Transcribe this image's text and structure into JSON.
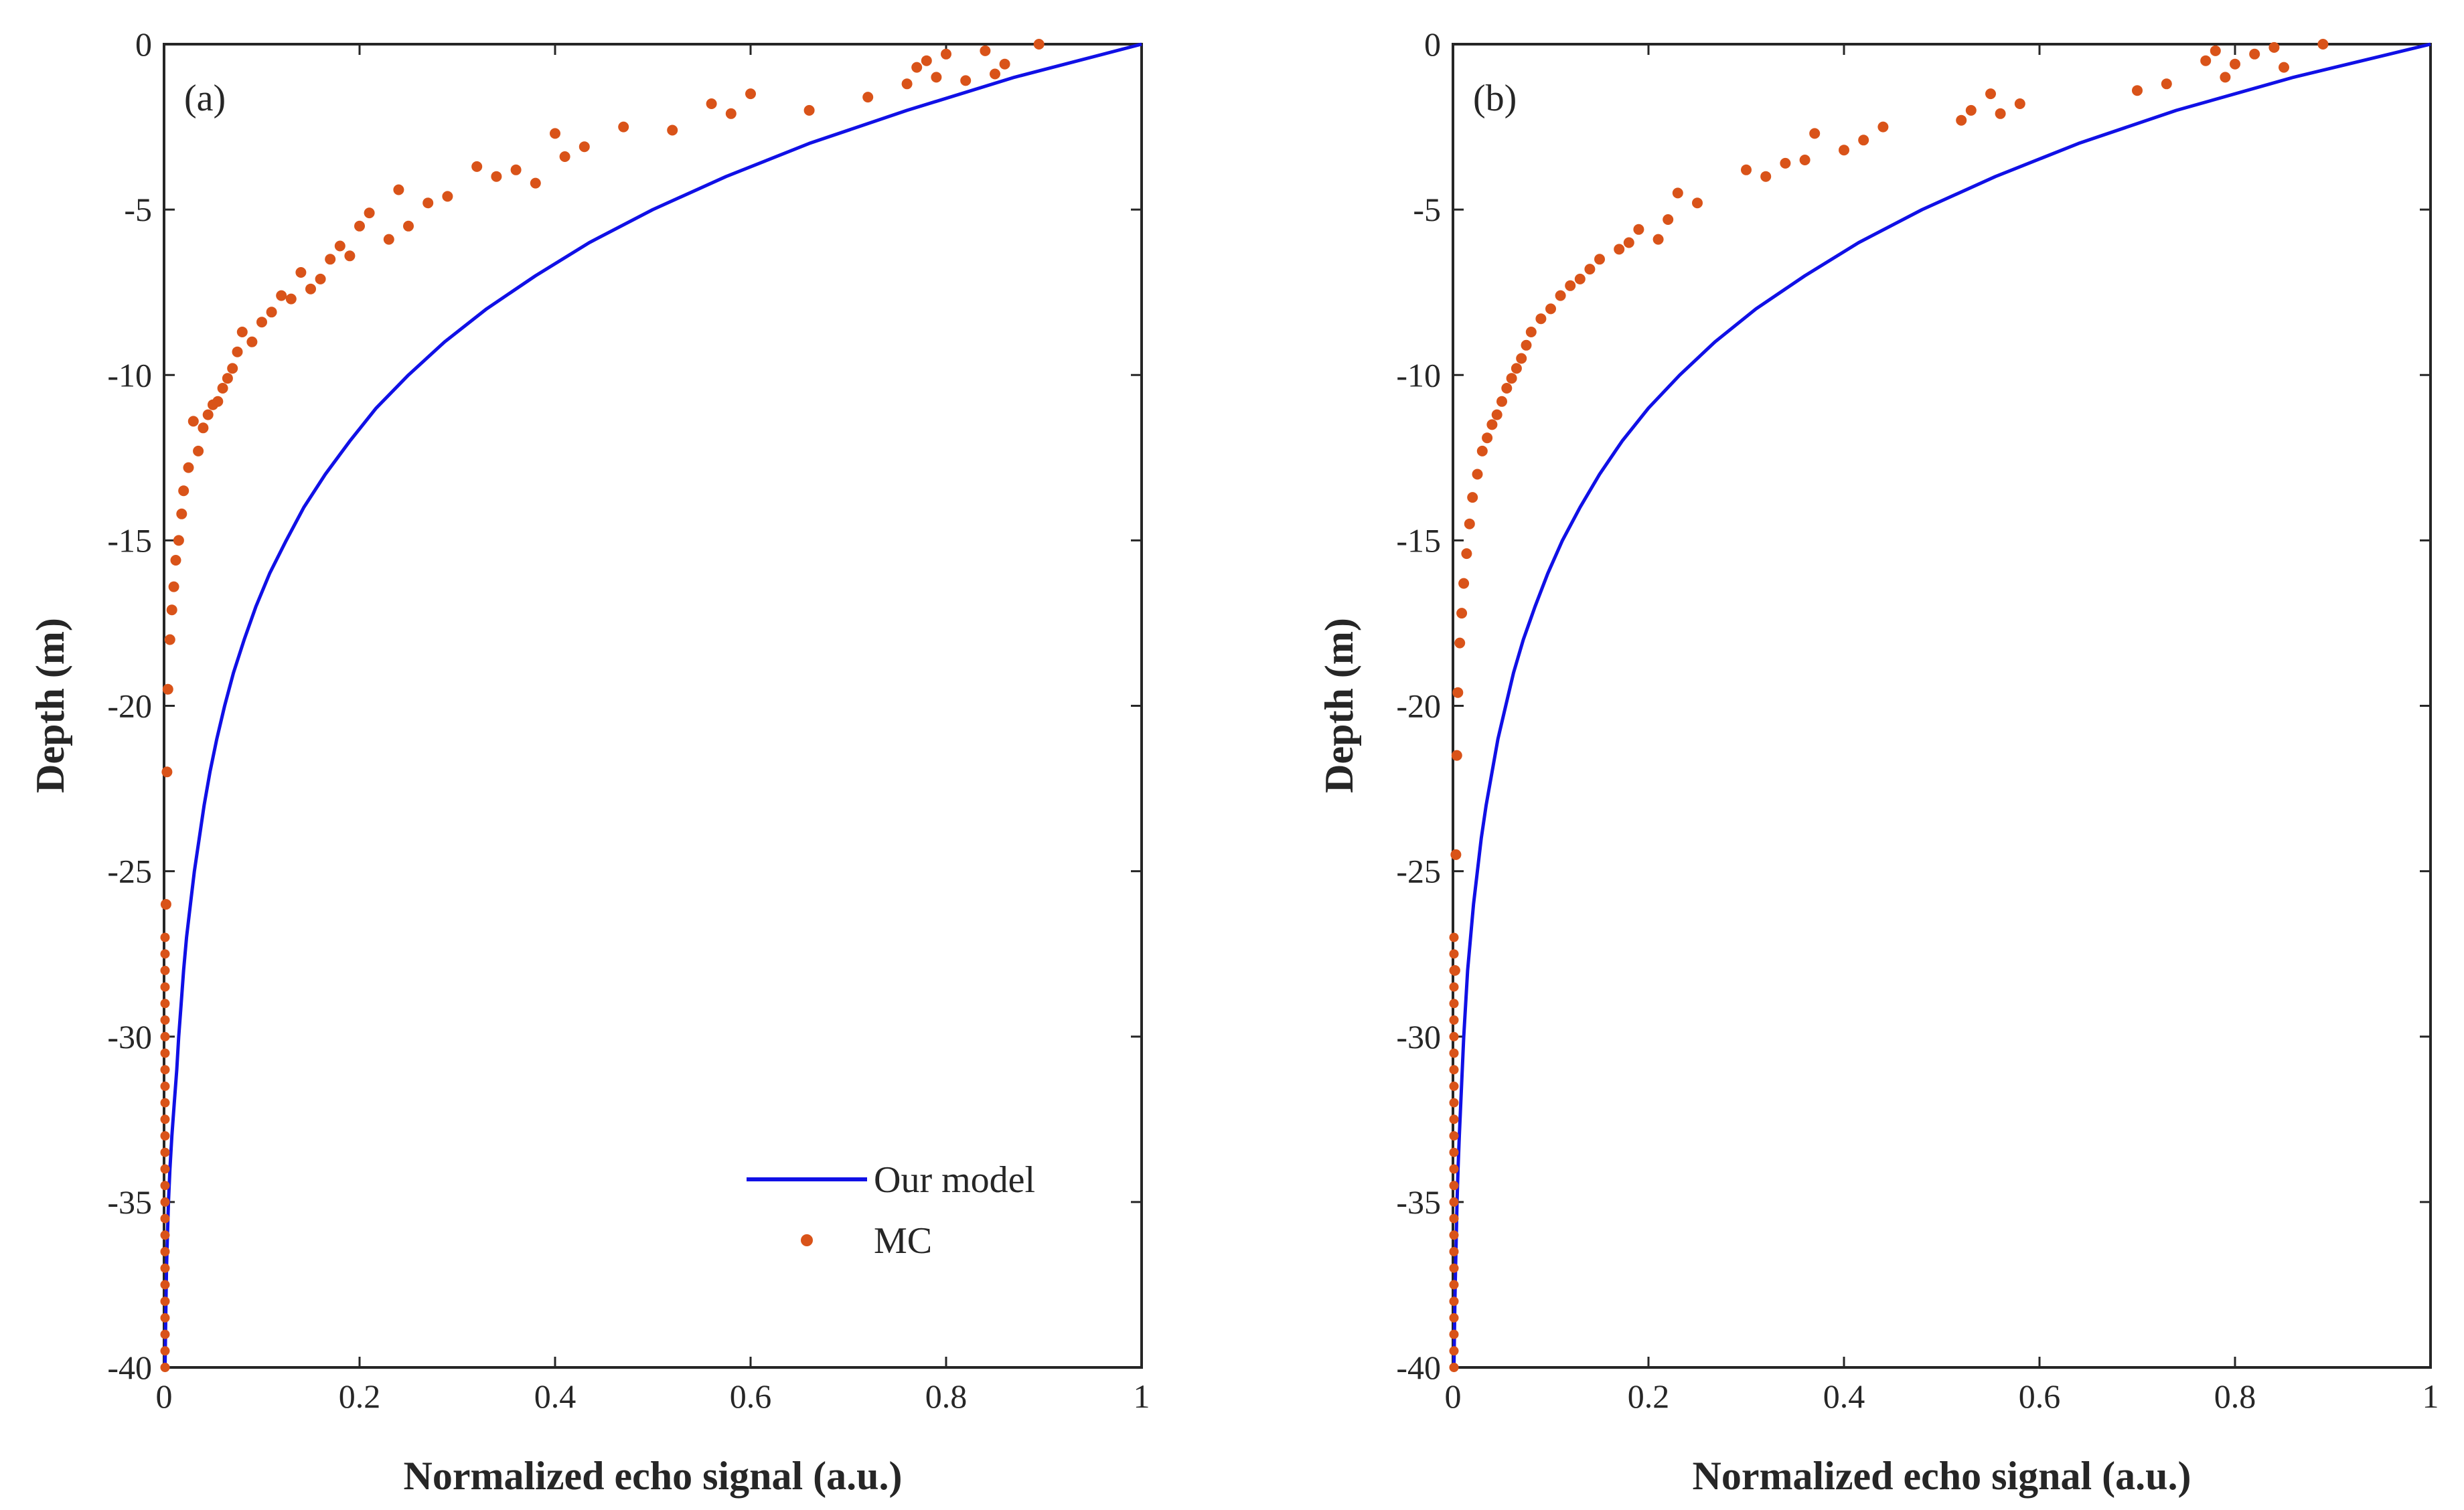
{
  "colors": {
    "model": "#1010e6",
    "mc": "#d95319",
    "axis": "#262626",
    "background": "#ffffff"
  },
  "chart_data": [
    {
      "panel": "(a)",
      "type": "line",
      "title": "",
      "xlabel": "Normalized echo signal (a.u.)",
      "ylabel": "Depth (m)",
      "xlim": [
        0,
        1
      ],
      "ylim": [
        -40,
        0
      ],
      "xticks": [
        0,
        0.2,
        0.4,
        0.6,
        0.8,
        1
      ],
      "xtick_labels": [
        "0",
        "0.2",
        "0.4",
        "0.6",
        "0.8",
        "1"
      ],
      "yticks": [
        0,
        -5,
        -10,
        -15,
        -20,
        -25,
        -30,
        -35,
        -40
      ],
      "ytick_labels": [
        "0",
        "-5",
        "-10",
        "-15",
        "-20",
        "-25",
        "-30",
        "-35",
        "-40"
      ],
      "legend": {
        "position": "bottom-right",
        "entries": [
          "Our model",
          "MC"
        ]
      },
      "series": [
        {
          "name": "Our model",
          "style": "line",
          "x": [
            1.0,
            0.87,
            0.76,
            0.66,
            0.575,
            0.5,
            0.435,
            0.38,
            0.33,
            0.287,
            0.25,
            0.217,
            0.19,
            0.165,
            0.143,
            0.125,
            0.108,
            0.094,
            0.082,
            0.071,
            0.062,
            0.054,
            0.047,
            0.041,
            0.036,
            0.031,
            0.027,
            0.023,
            0.02,
            0.0175,
            0.015,
            0.013,
            0.0105,
            0.008,
            0.006,
            0.0045,
            0.0035,
            0.0025,
            0.002,
            0.0015,
            0.001
          ],
          "y": [
            0,
            -1,
            -2,
            -3,
            -4,
            -5,
            -6,
            -7,
            -8,
            -9,
            -10,
            -11,
            -12,
            -13,
            -14,
            -15,
            -16,
            -17,
            -18,
            -19,
            -20,
            -21,
            -22,
            -23,
            -24,
            -25,
            -26,
            -27,
            -28,
            -29,
            -30,
            -31,
            -32,
            -33,
            -34,
            -35,
            -36,
            -37,
            -38,
            -39,
            -40
          ]
        },
        {
          "name": "MC",
          "style": "markers",
          "x": [
            0.895,
            0.84,
            0.86,
            0.8,
            0.79,
            0.77,
            0.78,
            0.76,
            0.85,
            0.82,
            0.72,
            0.66,
            0.6,
            0.58,
            0.56,
            0.52,
            0.47,
            0.43,
            0.41,
            0.4,
            0.38,
            0.36,
            0.34,
            0.32,
            0.29,
            0.27,
            0.25,
            0.24,
            0.23,
            0.21,
            0.2,
            0.19,
            0.18,
            0.17,
            0.16,
            0.15,
            0.14,
            0.13,
            0.12,
            0.11,
            0.1,
            0.09,
            0.08,
            0.075,
            0.07,
            0.065,
            0.06,
            0.055,
            0.05,
            0.045,
            0.04,
            0.035,
            0.03,
            0.025,
            0.02,
            0.018,
            0.015,
            0.012,
            0.01,
            0.008,
            0.006,
            0.004,
            0.003,
            0.002
          ],
          "y": [
            0,
            -0.2,
            -0.6,
            -0.3,
            -1.0,
            -0.7,
            -0.5,
            -1.2,
            -0.9,
            -1.1,
            -1.6,
            -2.0,
            -1.5,
            -2.1,
            -1.8,
            -2.6,
            -2.5,
            -3.1,
            -3.4,
            -2.7,
            -4.2,
            -3.8,
            -4.0,
            -3.7,
            -4.6,
            -4.8,
            -5.5,
            -4.4,
            -5.9,
            -5.1,
            -5.5,
            -6.4,
            -6.1,
            -6.5,
            -7.1,
            -7.4,
            -6.9,
            -7.7,
            -7.6,
            -8.1,
            -8.4,
            -9.0,
            -8.7,
            -9.3,
            -9.8,
            -10.1,
            -10.4,
            -10.8,
            -10.9,
            -11.2,
            -11.6,
            -12.3,
            -11.4,
            -12.8,
            -13.5,
            -14.2,
            -15.0,
            -15.6,
            -16.4,
            -17.1,
            -18.0,
            -19.5,
            -22.0,
            -26.0
          ]
        }
      ]
    },
    {
      "panel": "(b)",
      "type": "line",
      "title": "",
      "xlabel": "Normalized echo signal (a.u.)",
      "ylabel": "Depth (m)",
      "xlim": [
        0,
        1
      ],
      "ylim": [
        -40,
        0
      ],
      "xticks": [
        0,
        0.2,
        0.4,
        0.6,
        0.8,
        1
      ],
      "xtick_labels": [
        "0",
        "0.2",
        "0.4",
        "0.6",
        "0.8",
        "1"
      ],
      "yticks": [
        0,
        -5,
        -10,
        -15,
        -20,
        -25,
        -30,
        -35,
        -40
      ],
      "ytick_labels": [
        "0",
        "-5",
        "-10",
        "-15",
        "-20",
        "-25",
        "-30",
        "-35",
        "-40"
      ],
      "series": [
        {
          "name": "Our model",
          "style": "line",
          "x": [
            1.0,
            0.86,
            0.74,
            0.64,
            0.555,
            0.48,
            0.415,
            0.36,
            0.31,
            0.268,
            0.232,
            0.2,
            0.173,
            0.15,
            0.13,
            0.112,
            0.097,
            0.084,
            0.072,
            0.062,
            0.054,
            0.046,
            0.04,
            0.034,
            0.029,
            0.025,
            0.021,
            0.018,
            0.015,
            0.013,
            0.011,
            0.0095,
            0.008,
            0.0065,
            0.0052,
            0.0042,
            0.0034,
            0.0027,
            0.002,
            0.0015,
            0.001
          ],
          "y": [
            0,
            -1,
            -2,
            -3,
            -4,
            -5,
            -6,
            -7,
            -8,
            -9,
            -10,
            -11,
            -12,
            -13,
            -14,
            -15,
            -16,
            -17,
            -18,
            -19,
            -20,
            -21,
            -22,
            -23,
            -24,
            -25,
            -26,
            -27,
            -28,
            -29,
            -30,
            -31,
            -32,
            -33,
            -34,
            -35,
            -36,
            -37,
            -38,
            -39,
            -40
          ]
        },
        {
          "name": "MC",
          "style": "markers",
          "x": [
            0.89,
            0.84,
            0.82,
            0.78,
            0.77,
            0.8,
            0.79,
            0.85,
            0.73,
            0.7,
            0.58,
            0.55,
            0.56,
            0.53,
            0.52,
            0.44,
            0.42,
            0.4,
            0.37,
            0.36,
            0.34,
            0.32,
            0.3,
            0.25,
            0.23,
            0.22,
            0.21,
            0.19,
            0.18,
            0.17,
            0.15,
            0.14,
            0.13,
            0.12,
            0.11,
            0.1,
            0.09,
            0.08,
            0.075,
            0.07,
            0.065,
            0.06,
            0.055,
            0.05,
            0.045,
            0.04,
            0.035,
            0.03,
            0.025,
            0.02,
            0.017,
            0.014,
            0.011,
            0.009,
            0.007,
            0.005,
            0.004,
            0.003,
            0.002
          ],
          "y": [
            0,
            -0.1,
            -0.3,
            -0.2,
            -0.5,
            -0.6,
            -1.0,
            -0.7,
            -1.2,
            -1.4,
            -1.8,
            -1.5,
            -2.1,
            -2.0,
            -2.3,
            -2.5,
            -2.9,
            -3.2,
            -2.7,
            -3.5,
            -3.6,
            -4.0,
            -3.8,
            -4.8,
            -4.5,
            -5.3,
            -5.9,
            -5.6,
            -6.0,
            -6.2,
            -6.5,
            -6.8,
            -7.1,
            -7.3,
            -7.6,
            -8.0,
            -8.3,
            -8.7,
            -9.1,
            -9.5,
            -9.8,
            -10.1,
            -10.4,
            -10.8,
            -11.2,
            -11.5,
            -11.9,
            -12.3,
            -13.0,
            -13.7,
            -14.5,
            -15.4,
            -16.3,
            -17.2,
            -18.1,
            -19.6,
            -21.5,
            -24.5,
            -28.0
          ]
        }
      ]
    }
  ]
}
